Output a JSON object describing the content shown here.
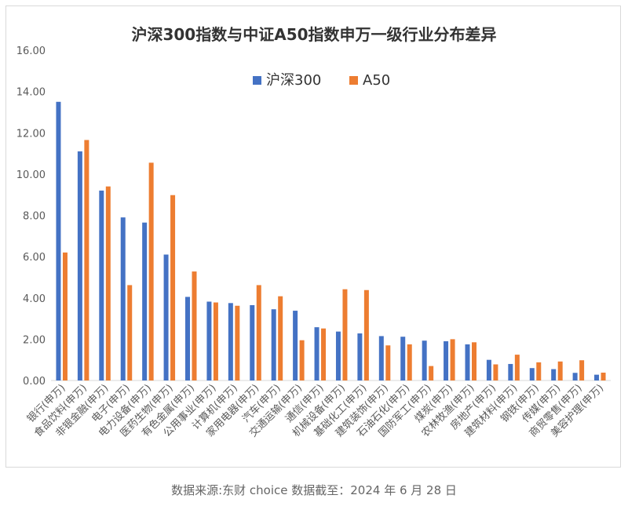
{
  "chart_data": {
    "type": "bar",
    "title": "沪深300指数与中证A50指数申万一级行业分布差异",
    "ylim": [
      0,
      16
    ],
    "yticks": [
      "0.00",
      "2.00",
      "4.00",
      "6.00",
      "8.00",
      "10.00",
      "12.00",
      "14.00",
      "16.00"
    ],
    "grid": false,
    "legend_position": "top-center",
    "categories": [
      "银行(申万)",
      "食品饮料(申万)",
      "非银金融(申万)",
      "电子(申万)",
      "电力设备(申万)",
      "医药生物(申万)",
      "有色金属(申万)",
      "公用事业(申万)",
      "计算机(申万)",
      "家用电器(申万)",
      "汽车(申万)",
      "交通运输(申万)",
      "通信(申万)",
      "机械设备(申万)",
      "基础化工(申万)",
      "建筑装饰(申万)",
      "石油石化(申万)",
      "国防军工(申万)",
      "煤炭(申万)",
      "农林牧渔(申万)",
      "房地产(申万)",
      "建筑材料(申万)",
      "钢铁(申万)",
      "传媒(申万)",
      "商贸零售(申万)",
      "美容护理(申万)"
    ],
    "series": [
      {
        "name": "沪深300",
        "color": "#4472c4",
        "values": [
          13.5,
          11.1,
          9.2,
          7.9,
          7.65,
          6.1,
          4.05,
          3.82,
          3.75,
          3.65,
          3.45,
          3.38,
          2.58,
          2.37,
          2.28,
          2.15,
          2.12,
          1.93,
          1.9,
          1.75,
          1.0,
          0.8,
          0.6,
          0.55,
          0.37,
          0.28
        ]
      },
      {
        "name": "A50",
        "color": "#ed7d31",
        "values": [
          6.2,
          11.65,
          9.4,
          4.62,
          10.55,
          8.98,
          5.28,
          3.78,
          3.62,
          4.62,
          4.08,
          1.95,
          2.52,
          4.42,
          4.38,
          1.7,
          1.75,
          0.7,
          2.0,
          1.85,
          0.78,
          1.25,
          0.88,
          0.92,
          0.98,
          0.38
        ]
      }
    ]
  },
  "footer": {
    "source": "数据来源:东财 choice    数据截至：2024 年 6 月 28 日"
  }
}
